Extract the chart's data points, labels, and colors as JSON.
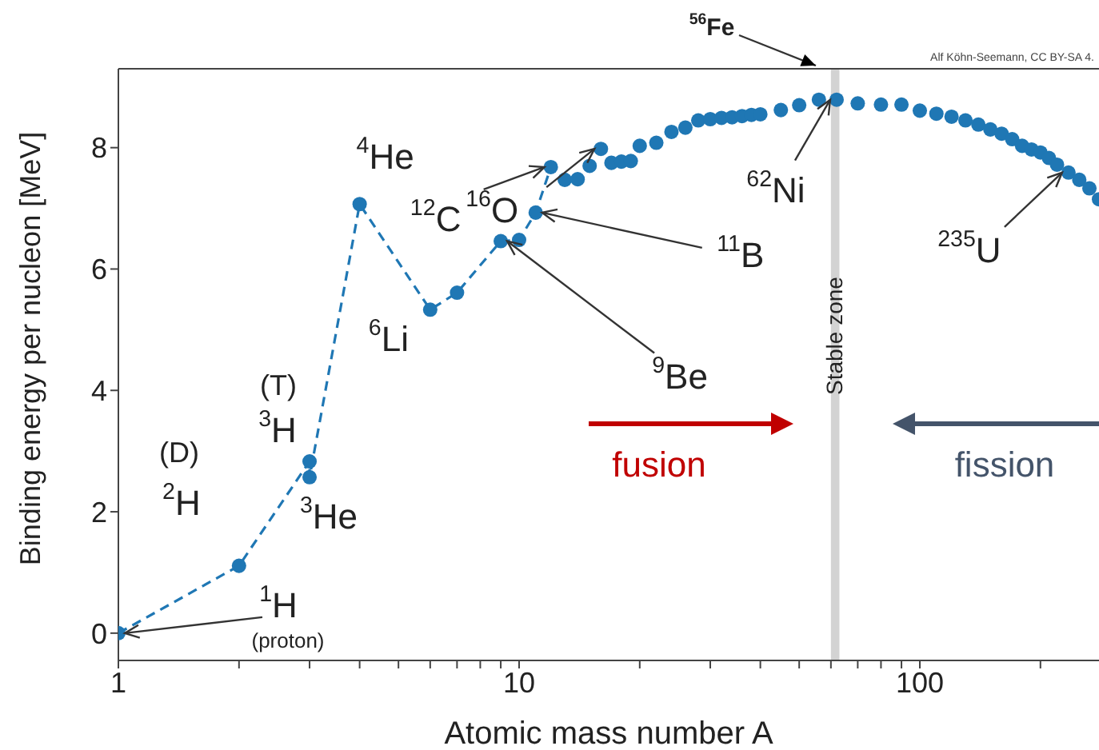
{
  "chart_data": {
    "type": "line",
    "xlabel": "Atomic mass number A",
    "ylabel": "Binding energy per nucleon [MeV]",
    "log": "x",
    "grid": false,
    "legend": false,
    "xlim": [
      1,
      280
    ],
    "ylim": [
      -0.45,
      9.3
    ],
    "xticks": [
      1,
      {
        "value": 2,
        "label": null
      },
      {
        "value": 3,
        "label": null
      },
      {
        "value": 4,
        "label": null
      },
      {
        "value": 5,
        "label": null
      },
      {
        "value": 6,
        "label": null
      },
      {
        "value": 7,
        "label": null
      },
      {
        "value": 8,
        "label": null
      },
      {
        "value": 9,
        "label": null
      },
      10,
      {
        "value": 20,
        "label": null
      },
      {
        "value": 30,
        "label": null
      },
      {
        "value": 40,
        "label": null
      },
      {
        "value": 50,
        "label": null
      },
      {
        "value": 60,
        "label": null
      },
      {
        "value": 70,
        "label": null
      },
      {
        "value": 80,
        "label": null
      },
      {
        "value": 90,
        "label": null
      },
      100,
      {
        "value": 200,
        "label": null
      }
    ],
    "yticks": [
      0,
      2,
      4,
      6,
      8
    ],
    "series": [
      {
        "type": "line",
        "color": "#1f77b4",
        "marker": "circle",
        "line_style": "dashed",
        "x": [
          1,
          2,
          3,
          3,
          4,
          6,
          7,
          9,
          10,
          11,
          12
        ],
        "values": [
          0,
          1.11,
          2.83,
          2.57,
          7.07,
          5.33,
          5.61,
          6.46,
          6.48,
          6.93,
          7.68
        ]
      },
      {
        "type": "scatter",
        "color": "#1f77b4",
        "marker": "circle",
        "x": [
          13,
          14,
          15,
          16,
          17,
          18,
          19,
          20,
          22,
          24,
          26,
          28,
          30,
          32,
          34,
          36,
          38,
          40,
          45,
          50,
          56,
          62,
          70,
          80,
          90,
          100,
          110,
          120,
          130,
          140,
          150,
          160,
          170,
          180,
          190,
          200,
          210,
          220,
          235,
          250,
          265,
          280
        ],
        "values": [
          7.47,
          7.48,
          7.7,
          7.98,
          7.75,
          7.77,
          7.78,
          8.03,
          8.08,
          8.26,
          8.33,
          8.45,
          8.47,
          8.49,
          8.5,
          8.52,
          8.54,
          8.55,
          8.62,
          8.7,
          8.79,
          8.79,
          8.73,
          8.71,
          8.71,
          8.61,
          8.56,
          8.51,
          8.45,
          8.38,
          8.3,
          8.23,
          8.14,
          8.03,
          7.97,
          7.92,
          7.83,
          7.72,
          7.59,
          7.47,
          7.33,
          7.15
        ]
      }
    ],
    "bands": [
      {
        "axis": "x",
        "from": 60,
        "to": 63,
        "label": "Stable zone",
        "color": "#d3d3d3"
      }
    ],
    "annotations": [
      {
        "text": "$^{1}$H",
        "x": 1,
        "y": 0
      },
      {
        "text": "(proton)",
        "x": 1,
        "y": 0
      },
      {
        "text": "$^{2}$H",
        "x": 2,
        "y": 1.11
      },
      "(D)",
      {
        "text": "$^{3}$H",
        "x": 3,
        "y": 2.83
      },
      "(T)",
      {
        "text": "$^{3}$He",
        "x": 3,
        "y": 2.57
      },
      {
        "text": "$^{4}$He",
        "x": 4,
        "y": 7.07
      },
      {
        "text": "$^{6}$Li",
        "x": 6,
        "y": 5.33
      },
      {
        "text": "$^{9}$Be",
        "x": 9,
        "y": 6.46
      },
      {
        "text": "$^{11}$B",
        "x": 11,
        "y": 6.93
      },
      {
        "text": "$^{12}$C",
        "x": 12,
        "y": 7.68
      },
      {
        "text": "$^{16}$O",
        "x": 16,
        "y": 7.98
      },
      {
        "text": "$^{62}$Ni",
        "x": 62,
        "y": 8.79
      },
      {
        "text": "$^{235}$U",
        "x": 235,
        "y": 7.59
      },
      "$^{56}$Fe",
      "fusion",
      "fission",
      "Alf Köhn-Seemann, CC BY-SA 4."
    ]
  }
}
